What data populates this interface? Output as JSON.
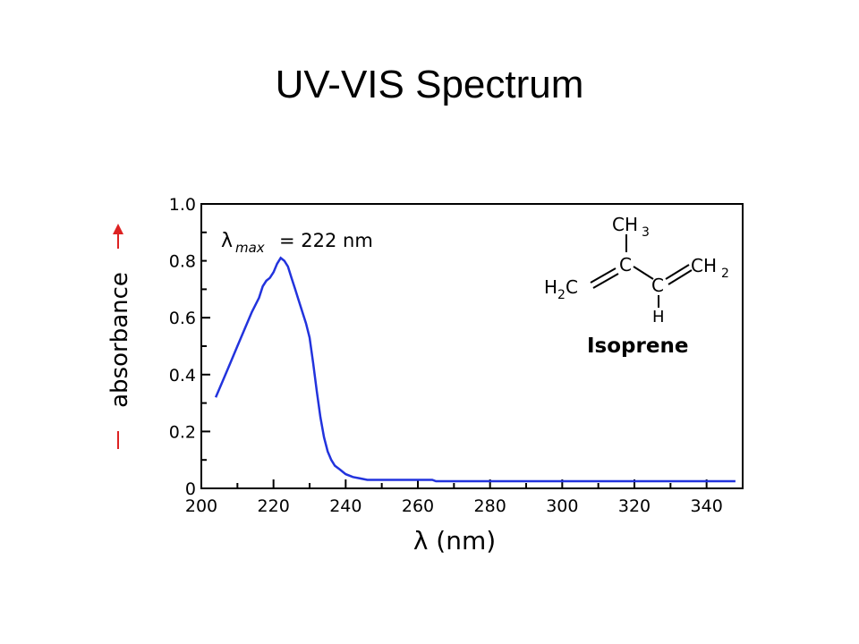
{
  "slide": {
    "title": "UV-VIS Spectrum"
  },
  "chart_data": {
    "type": "line",
    "title": "",
    "xlabel": "λ (nm)",
    "ylabel": "absorbance",
    "xlim": [
      200,
      350
    ],
    "ylim": [
      0,
      1.0
    ],
    "x_ticks": [
      200,
      220,
      240,
      260,
      280,
      300,
      320,
      340
    ],
    "y_ticks": [
      0,
      0.2,
      0.4,
      0.6,
      0.8,
      1.0
    ],
    "y_tick_labels": [
      "0",
      "0.2",
      "0.4",
      "0.6",
      "0.8",
      "1.0"
    ],
    "x_tick_labels": [
      "200",
      "220",
      "240",
      "260",
      "280",
      "300",
      "320",
      "340"
    ],
    "grid": false,
    "series": [
      {
        "color": "#2233dd",
        "x": [
          204,
          206,
          208,
          210,
          212,
          214,
          216,
          217,
          218,
          219,
          220,
          221,
          222,
          223,
          224,
          225,
          226,
          227,
          228,
          229,
          230,
          231,
          232,
          233,
          234,
          235,
          236,
          237,
          238,
          240,
          242,
          244,
          246,
          248,
          250,
          255,
          260,
          264,
          265,
          270,
          280,
          300,
          320,
          340,
          348
        ],
        "y": [
          0.32,
          0.38,
          0.44,
          0.5,
          0.56,
          0.62,
          0.67,
          0.71,
          0.73,
          0.74,
          0.76,
          0.79,
          0.81,
          0.8,
          0.78,
          0.74,
          0.7,
          0.66,
          0.62,
          0.58,
          0.53,
          0.44,
          0.34,
          0.25,
          0.18,
          0.13,
          0.1,
          0.08,
          0.07,
          0.05,
          0.04,
          0.035,
          0.03,
          0.03,
          0.03,
          0.03,
          0.03,
          0.03,
          0.025,
          0.025,
          0.025,
          0.025,
          0.025,
          0.025,
          0.025
        ]
      }
    ],
    "annotations": {
      "lambda_symbol": "λ",
      "lambda_subscript": "max",
      "lambda_value": "= 222 nm",
      "compound_name": "Isoprene"
    },
    "structure_labels": {
      "ch3": "CH",
      "ch3_sub": "3",
      "h2c": "H",
      "h2c_sub": "2",
      "h2c_tail": "C",
      "c_top": "C",
      "c_mid": "C",
      "ch2": "CH",
      "ch2_sub": "2",
      "h_bottom": "H"
    }
  }
}
